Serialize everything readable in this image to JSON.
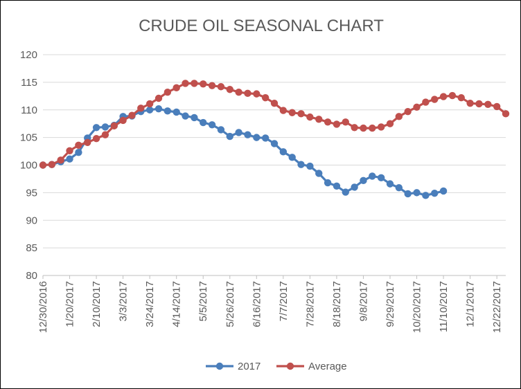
{
  "chart_data": {
    "type": "line",
    "title": "CRUDE OIL SEASONAL CHART",
    "xlabel": "",
    "ylabel": "",
    "ylim": [
      80,
      120
    ],
    "yticks": [
      80,
      85,
      90,
      95,
      100,
      105,
      110,
      115,
      120
    ],
    "xticks": [
      "12/30/2016",
      "1/20/2017",
      "2/10/2017",
      "3/3/2017",
      "3/24/2017",
      "4/14/2017",
      "5/5/2017",
      "5/26/2017",
      "6/16/2017",
      "7/7/2017",
      "7/28/2017",
      "8/18/2017",
      "9/8/2017",
      "9/29/2017",
      "10/20/2017",
      "11/10/2017",
      "12/1/2017",
      "12/22/2017"
    ],
    "x_interval": "weekly",
    "grid": true,
    "legend": "bottom",
    "series": [
      {
        "name": "2017",
        "color": "#4a7ebb",
        "values": [
          100,
          100.1,
          100.6,
          101.1,
          102.3,
          104.9,
          106.8,
          106.9,
          107.2,
          108.8,
          108.9,
          109.7,
          110,
          110.2,
          109.8,
          109.6,
          108.9,
          108.6,
          107.7,
          107.3,
          106.4,
          105.2,
          105.9,
          105.5,
          105,
          104.9,
          103.9,
          102.4,
          101.4,
          100.1,
          99.8,
          98.5,
          96.8,
          96.2,
          95.1,
          96,
          97.2,
          98,
          97.7,
          96.6,
          95.9,
          94.8,
          95,
          94.5,
          94.9,
          95.3
        ]
      },
      {
        "name": "Average",
        "color": "#c0504d",
        "values": [
          100,
          100.1,
          100.9,
          102.6,
          103.6,
          104.1,
          104.8,
          105.5,
          107.1,
          108.1,
          109,
          110.3,
          111.1,
          112.1,
          113.2,
          114,
          114.8,
          114.8,
          114.7,
          114.4,
          114.2,
          113.7,
          113.2,
          113,
          112.9,
          112.2,
          111.2,
          109.9,
          109.5,
          109.3,
          108.7,
          108.3,
          107.8,
          107.4,
          107.8,
          106.8,
          106.7,
          106.7,
          106.9,
          107.5,
          108.8,
          109.7,
          110.5,
          111.4,
          111.9,
          112.4,
          112.6,
          112.2,
          111.2,
          111.1,
          111,
          110.6,
          109.3
        ]
      }
    ]
  }
}
